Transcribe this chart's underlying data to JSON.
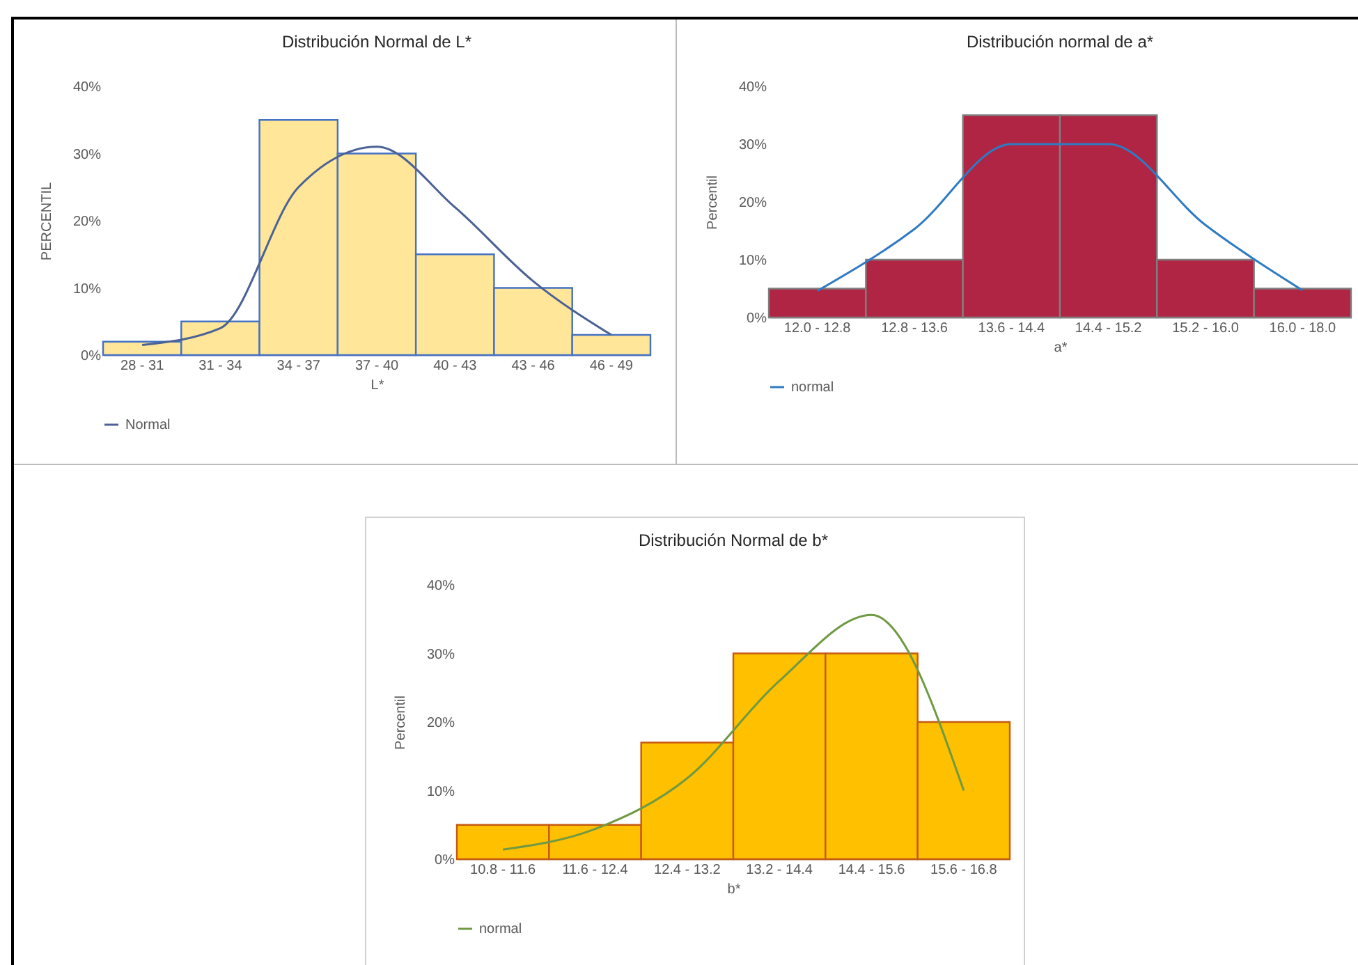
{
  "chart_data": [
    {
      "type": "bar",
      "title": "Distribución Normal de L*",
      "xlabel": "L*",
      "ylabel": "PERCENTIL",
      "categories": [
        "28 - 31",
        "31 - 34",
        "34 - 37",
        "37 - 40",
        "40 - 43",
        "43 - 46",
        "46 - 49"
      ],
      "ylim": [
        0,
        40
      ],
      "yticks": [
        {
          "value": 0,
          "label": "0%"
        },
        {
          "value": 10,
          "label": "10%"
        },
        {
          "value": 20,
          "label": "20%"
        },
        {
          "value": 30,
          "label": "30%"
        },
        {
          "value": 40,
          "label": "40%"
        }
      ],
      "legend": "bottom",
      "series": [
        {
          "color": "#ffe699",
          "values": [
            2,
            5,
            35,
            30,
            15,
            10,
            3
          ]
        },
        {
          "name": "Normal",
          "type": "line",
          "color": "#4a6294",
          "values": [
            1.5,
            4,
            25,
            31,
            22,
            11,
            3
          ]
        }
      ]
    },
    {
      "type": "bar",
      "title": "Distribución normal de a*",
      "xlabel": "a*",
      "ylabel": "Percentil",
      "categories": [
        "12.0 - 12.8",
        "12.8 - 13.6",
        "13.6 - 14.4",
        "14.4 - 15.2",
        "15.2 - 16.0",
        "16.0 - 18.0"
      ],
      "ylim": [
        0,
        40
      ],
      "yticks": [
        {
          "value": 0,
          "label": "0%"
        },
        {
          "value": 10,
          "label": "10%"
        },
        {
          "value": 20,
          "label": "20%"
        },
        {
          "value": 30,
          "label": "30%"
        },
        {
          "value": 40,
          "label": "40%"
        }
      ],
      "legend": "bottom",
      "series": [
        {
          "color": "#b02444",
          "values": [
            5,
            10,
            35,
            35,
            10,
            5
          ]
        },
        {
          "name": "normal",
          "type": "line",
          "color": "#2e7bc4",
          "values": [
            4.6,
            15.3,
            30,
            30,
            16,
            4.7
          ]
        }
      ]
    },
    {
      "type": "bar",
      "title": "Distribución Normal de b*",
      "xlabel": "b*",
      "ylabel": "Percentil",
      "categories": [
        "10.8 - 11.6",
        "11.6 - 12.4",
        "12.4 - 13.2",
        "13.2 - 14.4",
        "14.4 - 15.6",
        "15.6 - 16.8"
      ],
      "ylim": [
        0,
        40
      ],
      "yticks": [
        {
          "value": 0,
          "label": "0%"
        },
        {
          "value": 10,
          "label": "10%"
        },
        {
          "value": 20,
          "label": "20%"
        },
        {
          "value": 30,
          "label": "30%"
        },
        {
          "value": 40,
          "label": "40%"
        }
      ],
      "legend": "bottom",
      "series": [
        {
          "color": "#ffc000",
          "values": [
            5,
            5,
            17,
            30,
            30,
            20
          ]
        },
        {
          "name": "normal",
          "type": "line",
          "color": "#6f9a43",
          "values": [
            1.4,
            4.4,
            11.8,
            26,
            35.6,
            10
          ]
        }
      ]
    }
  ]
}
